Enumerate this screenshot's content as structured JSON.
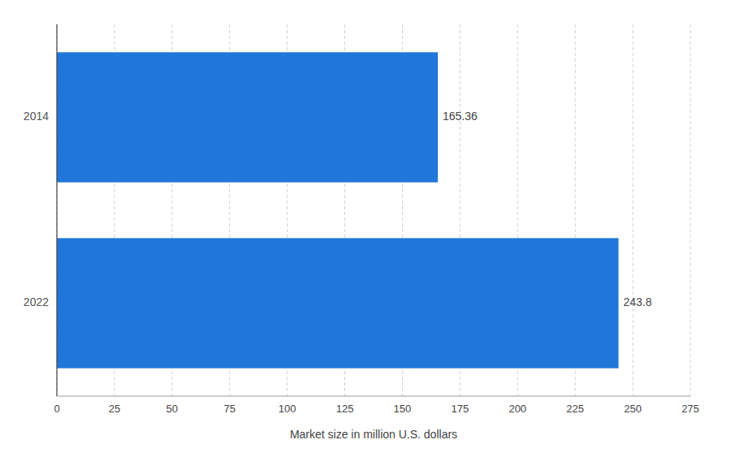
{
  "chart_data": {
    "type": "bar",
    "orientation": "horizontal",
    "x_label": "Market size in million U.S. dollars",
    "categories": [
      "2014",
      "2022"
    ],
    "values": [
      165.36,
      243.8
    ],
    "color": "#2176d9",
    "xlim": [
      0,
      275
    ],
    "xticks": [
      0,
      25,
      50,
      75,
      100,
      125,
      150,
      175,
      200,
      225,
      250,
      275
    ],
    "grid": true,
    "data_labels": true
  }
}
